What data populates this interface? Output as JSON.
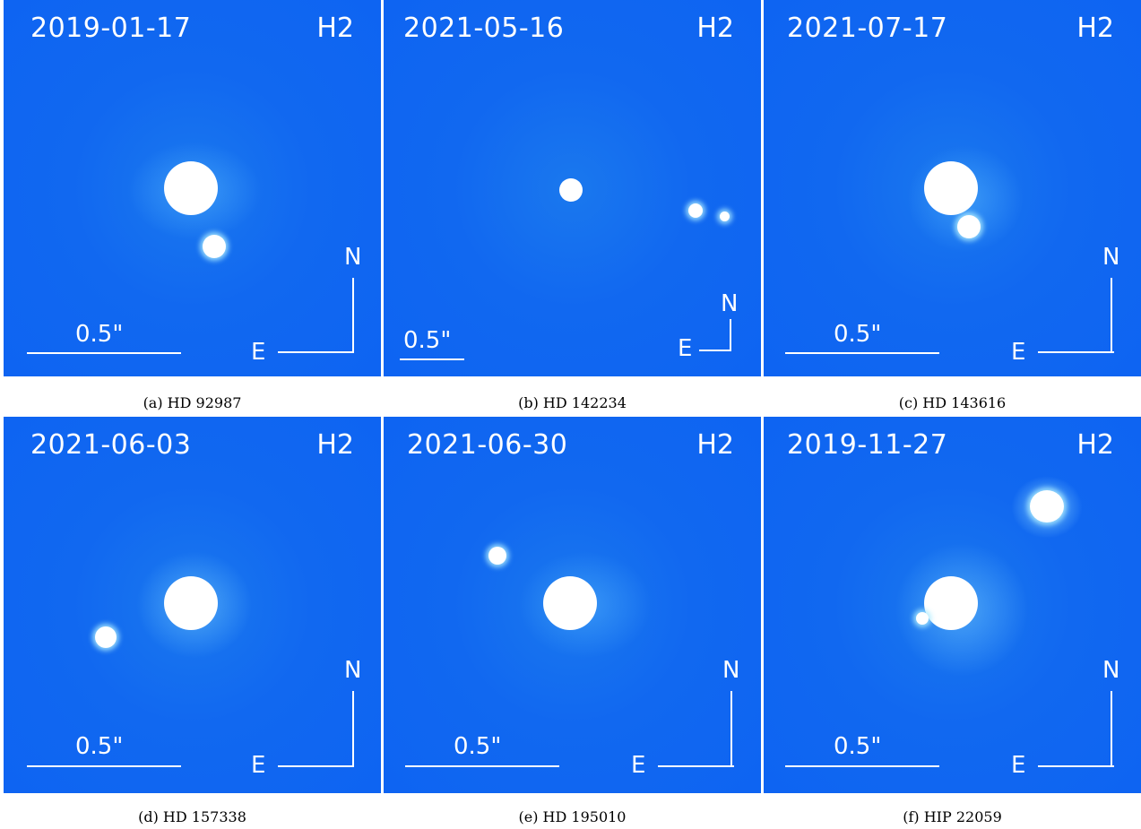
{
  "panels": [
    {
      "date": "2019-01-17",
      "filter": "H2",
      "scale_label": "0.5\"",
      "east": "E",
      "north": "N",
      "caption": "(a) HD 92987"
    },
    {
      "date": "2021-05-16",
      "filter": "H2",
      "scale_label": "0.5\"",
      "east": "E",
      "north": "N",
      "caption": "(b) HD 142234"
    },
    {
      "date": "2021-07-17",
      "filter": "H2",
      "scale_label": "0.5\"",
      "east": "E",
      "north": "N",
      "caption": "(c) HD 143616"
    },
    {
      "date": "2021-06-03",
      "filter": "H2",
      "scale_label": "0.5\"",
      "east": "E",
      "north": "N",
      "caption": "(d) HD 157338"
    },
    {
      "date": "2021-06-30",
      "filter": "H2",
      "scale_label": "0.5\"",
      "east": "E",
      "north": "N",
      "caption": "(e) HD 195010"
    },
    {
      "date": "2019-11-27",
      "filter": "H2",
      "scale_label": "0.5\"",
      "east": "E",
      "north": "N",
      "caption": "(f) HIP 22059"
    }
  ]
}
